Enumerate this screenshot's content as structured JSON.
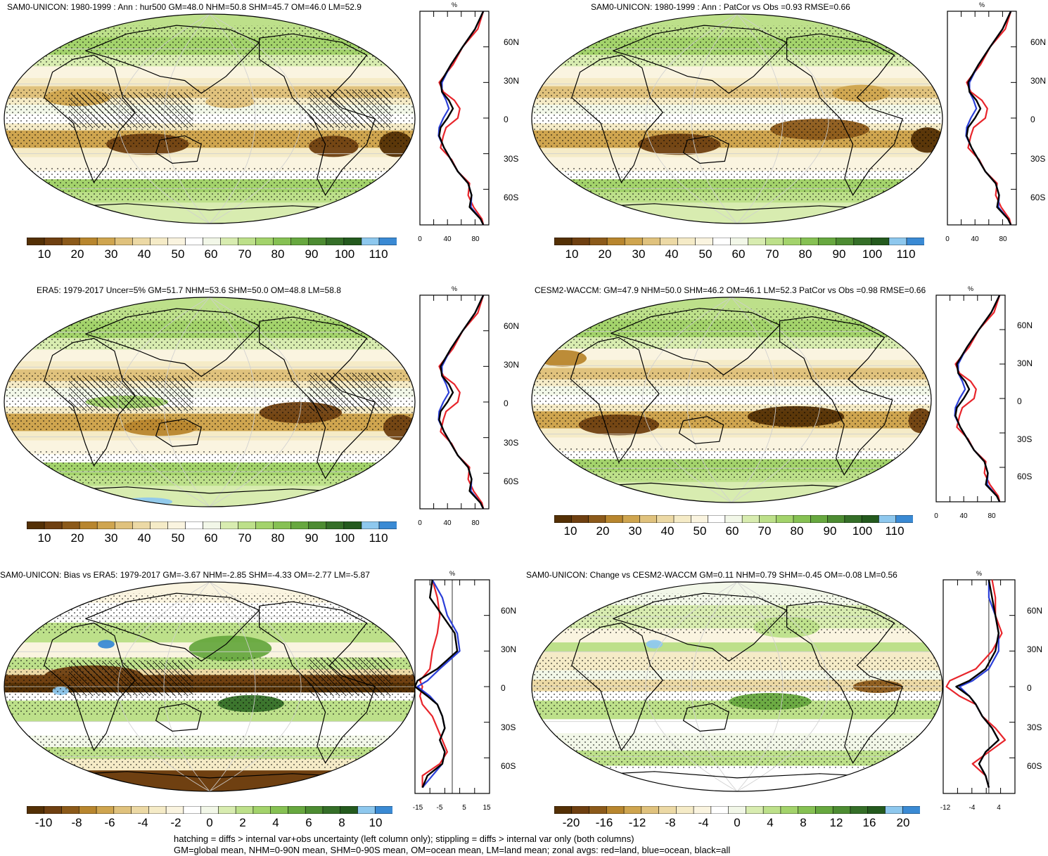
{
  "colors": {
    "abs_scale": [
      "#543005",
      "#6f4011",
      "#8c5a1a",
      "#b8862e",
      "#cfa54f",
      "#e0c27d",
      "#ecd9a5",
      "#f5ebc7",
      "#faf4e0",
      "#ffffff",
      "#f2f7e8",
      "#d8ecb0",
      "#bde08a",
      "#a3d36b",
      "#86c153",
      "#67a83f",
      "#4d8c32",
      "#356f28",
      "#245a1e",
      "#8ec8ee",
      "#3a8ad4"
    ],
    "diff_scale": [
      "#543005",
      "#6f4011",
      "#8c5a1a",
      "#b8862e",
      "#cfa54f",
      "#e0c27d",
      "#ecd9a5",
      "#f5ebc7",
      "#faf4e0",
      "#ffffff",
      "#f2f7e8",
      "#d8ecb0",
      "#bde08a",
      "#a3d36b",
      "#86c153",
      "#67a83f",
      "#4d8c32",
      "#356f28",
      "#245a1e",
      "#8ec8ee",
      "#3a8ad4"
    ],
    "land": "#e8252b",
    "ocean": "#2b3fd8",
    "all": "#000000"
  },
  "panels": [
    {
      "id": "model",
      "title": "SAM0-UNICON: 1980-1999 : Ann : hur500 GM=48.0 NHM=50.8 SHM=45.7 OM=46.0 LM=52.9",
      "colorbar_labels": [
        "10",
        "20",
        "30",
        "40",
        "50",
        "60",
        "70",
        "80",
        "90",
        "100",
        "110"
      ],
      "profile_unit": "%",
      "profile_xticks": [
        "0",
        "40",
        "80"
      ],
      "profile_xrange": [
        0,
        100
      ],
      "lat_labels": [
        "60N",
        "30N",
        "0",
        "30S",
        "60S"
      ],
      "hatching": true,
      "anomaly": false
    },
    {
      "id": "model-vs-obs",
      "title": "SAM0-UNICON: 1980-1999 : Ann : PatCor vs Obs =0.93 RMSE=0.66",
      "colorbar_labels": [
        "10",
        "20",
        "30",
        "40",
        "50",
        "60",
        "70",
        "80",
        "90",
        "100",
        "110"
      ],
      "profile_unit": "%",
      "profile_xticks": [
        "0",
        "40",
        "80"
      ],
      "profile_xrange": [
        0,
        100
      ],
      "lat_labels": [
        "60N",
        "30N",
        "0",
        "30S",
        "60S"
      ],
      "hatching": false,
      "anomaly": false
    },
    {
      "id": "obs",
      "title": "ERA5: 1979-2017 Uncer=5% GM=51.7 NHM=53.6 SHM=50.0 OM=48.8 LM=58.8",
      "colorbar_labels": [
        "10",
        "20",
        "30",
        "40",
        "50",
        "60",
        "70",
        "80",
        "90",
        "100",
        "110"
      ],
      "profile_unit": "%",
      "profile_xticks": [
        "0",
        "40",
        "80"
      ],
      "profile_xrange": [
        0,
        100
      ],
      "lat_labels": [
        "60N",
        "30N",
        "0",
        "30S",
        "60S"
      ],
      "hatching": true,
      "anomaly": false
    },
    {
      "id": "reference",
      "title": "CESM2-WACCM: GM=47.9 NHM=50.0 SHM=46.2 OM=46.1 LM=52.3 PatCor vs Obs =0.98 RMSE=0.66",
      "colorbar_labels": [
        "10",
        "20",
        "30",
        "40",
        "50",
        "60",
        "70",
        "80",
        "90",
        "100",
        "110"
      ],
      "profile_unit": "%",
      "profile_xticks": [
        "0",
        "40",
        "80"
      ],
      "profile_xrange": [
        0,
        100
      ],
      "lat_labels": [
        "60N",
        "30N",
        "0",
        "30S",
        "60S"
      ],
      "hatching": false,
      "anomaly": false
    },
    {
      "id": "bias",
      "title": "SAM0-UNICON: Bias vs ERA5: 1979-2017 GM=-3.67 NHM=-2.85 SHM=-4.33 OM=-2.77 LM=-5.87",
      "colorbar_labels": [
        "-10",
        "-8",
        "-6",
        "-4",
        "-2",
        "0",
        "2",
        "4",
        "6",
        "8",
        "10"
      ],
      "profile_unit": "%",
      "profile_xticks": [
        "-15",
        "-5",
        "5",
        "15"
      ],
      "profile_xrange": [
        -15,
        15
      ],
      "lat_labels": [
        "60N",
        "30N",
        "0",
        "30S",
        "60S"
      ],
      "hatching": true,
      "anomaly": true
    },
    {
      "id": "change",
      "title": "SAM0-UNICON: Change vs CESM2-WACCM GM=0.11 NHM=0.79 SHM=-0.45 OM=-0.08 LM=0.56",
      "colorbar_labels": [
        "-20",
        "-16",
        "-12",
        "-8",
        "-4",
        "0",
        "4",
        "8",
        "12",
        "16",
        "20"
      ],
      "profile_unit": "%",
      "profile_xticks": [
        "-12",
        "-4",
        "4"
      ],
      "profile_xrange": [
        -14,
        8
      ],
      "lat_labels": [
        "60N",
        "30N",
        "0",
        "30S",
        "60S"
      ],
      "hatching": false,
      "anomaly": true
    }
  ],
  "footer": {
    "line1": "hatching = diffs > internal var+obs uncertainty (left column only); stippling = diffs > internal var only (both columns)",
    "line2": "GM=global mean, NHM=0-90N mean, SHM=0-90S mean, OM=ocean mean, LM=land mean; zonal avgs: red=land, blue=ocean, black=all"
  }
}
